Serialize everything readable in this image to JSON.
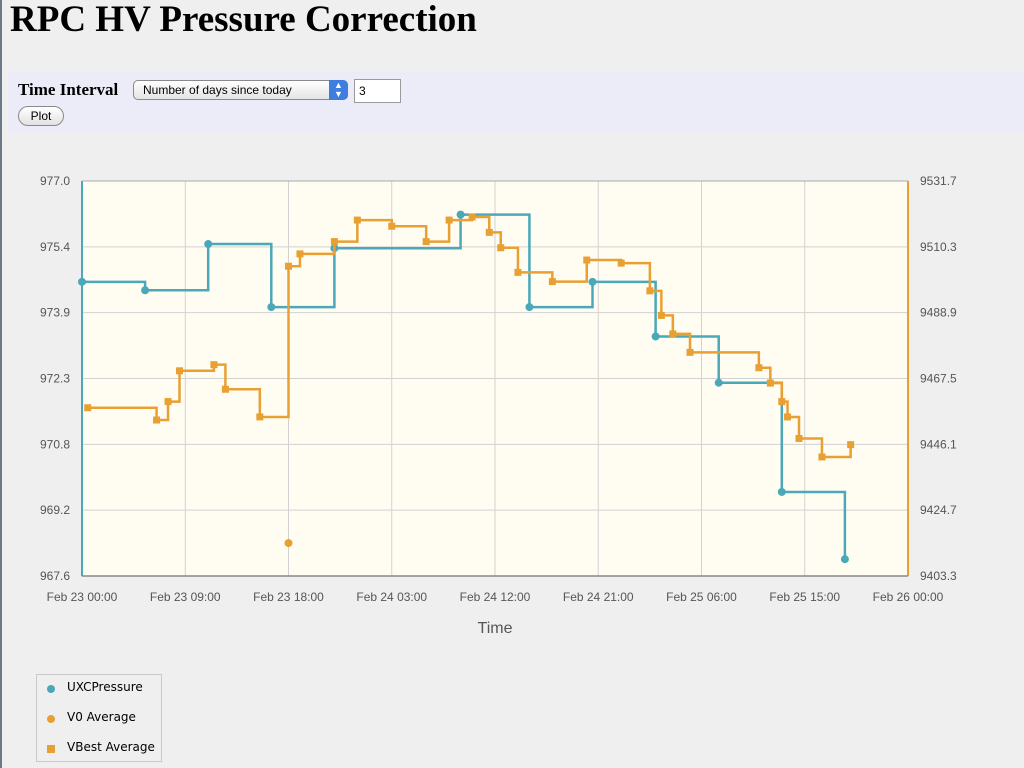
{
  "page_title": "RPC HV Pressure Correction",
  "form": {
    "time_interval_label": "Time Interval",
    "select_value": "Number of days since today",
    "days_value": "3",
    "plot_button": "Plot"
  },
  "colors": {
    "pressure": "#4aa8b8",
    "vbest": "#e8a033",
    "v0": "#e8a033",
    "plot_bg": "#fffcf2",
    "grid": "#d2d2d2"
  },
  "chart_data": {
    "type": "line",
    "title": "",
    "xlabel": "Time",
    "x_ticks": [
      "Feb 23 00:00",
      "Feb 23 09:00",
      "Feb 23 18:00",
      "Feb 24 03:00",
      "Feb 24 12:00",
      "Feb 24 21:00",
      "Feb 25 06:00",
      "Feb 25 15:00",
      "Feb 26 00:00"
    ],
    "xlim": [
      0,
      72
    ],
    "x_unit": "hours since Feb 23 00:00",
    "y_left_ticks": [
      "977.0",
      "975.4",
      "973.9",
      "972.3",
      "970.8",
      "969.2",
      "967.6"
    ],
    "ylim_left": [
      967.6,
      977.0
    ],
    "y_right_ticks": [
      "9531.7",
      "9510.3",
      "9488.9",
      "9467.5",
      "9446.1",
      "9424.7",
      "9403.3"
    ],
    "ylim_right": [
      9403.3,
      9531.7
    ],
    "grid": true,
    "legend_placement": "bottom-left, below plot",
    "series": [
      {
        "name": "UXCPressure",
        "axis": "left",
        "style": "step",
        "marker": "circle",
        "points": [
          [
            0,
            974.6
          ],
          [
            5.5,
            974.4
          ],
          [
            11,
            975.5
          ],
          [
            16.5,
            974.0
          ],
          [
            22,
            975.4
          ],
          [
            33,
            976.2
          ],
          [
            39,
            974.0
          ],
          [
            44.5,
            974.6
          ],
          [
            50,
            973.3
          ],
          [
            55.5,
            972.2
          ],
          [
            61,
            969.6
          ],
          [
            66.5,
            968.0
          ]
        ]
      },
      {
        "name": "V0 Average",
        "axis": "right",
        "style": "none",
        "marker": "circle",
        "points": [
          [
            18,
            9414.0
          ]
        ]
      },
      {
        "name": "VBest Average",
        "axis": "right",
        "style": "step",
        "marker": "square",
        "points": [
          [
            0.5,
            9458.0
          ],
          [
            6.5,
            9454.0
          ],
          [
            7.5,
            9460.0
          ],
          [
            8.5,
            9470.0
          ],
          [
            11.5,
            9472.0
          ],
          [
            12.5,
            9464.0
          ],
          [
            15.5,
            9455.0
          ],
          [
            18,
            9504.0
          ],
          [
            19,
            9508.0
          ],
          [
            22,
            9512.0
          ],
          [
            24,
            9519.0
          ],
          [
            27,
            9517.0
          ],
          [
            30,
            9512.0
          ],
          [
            32,
            9519.0
          ],
          [
            34,
            9520.0
          ],
          [
            35.5,
            9515.0
          ],
          [
            36.5,
            9510.0
          ],
          [
            38,
            9502.0
          ],
          [
            41,
            9499.0
          ],
          [
            44,
            9506.0
          ],
          [
            47,
            9505.0
          ],
          [
            49.5,
            9496.0
          ],
          [
            50.5,
            9488.0
          ],
          [
            51.5,
            9482.0
          ],
          [
            53,
            9476.0
          ],
          [
            59,
            9471.0
          ],
          [
            60,
            9466.0
          ],
          [
            61,
            9460.0
          ],
          [
            61.5,
            9455.0
          ],
          [
            62.5,
            9448.0
          ],
          [
            64.5,
            9442.0
          ],
          [
            67,
            9446.0
          ]
        ]
      }
    ]
  }
}
